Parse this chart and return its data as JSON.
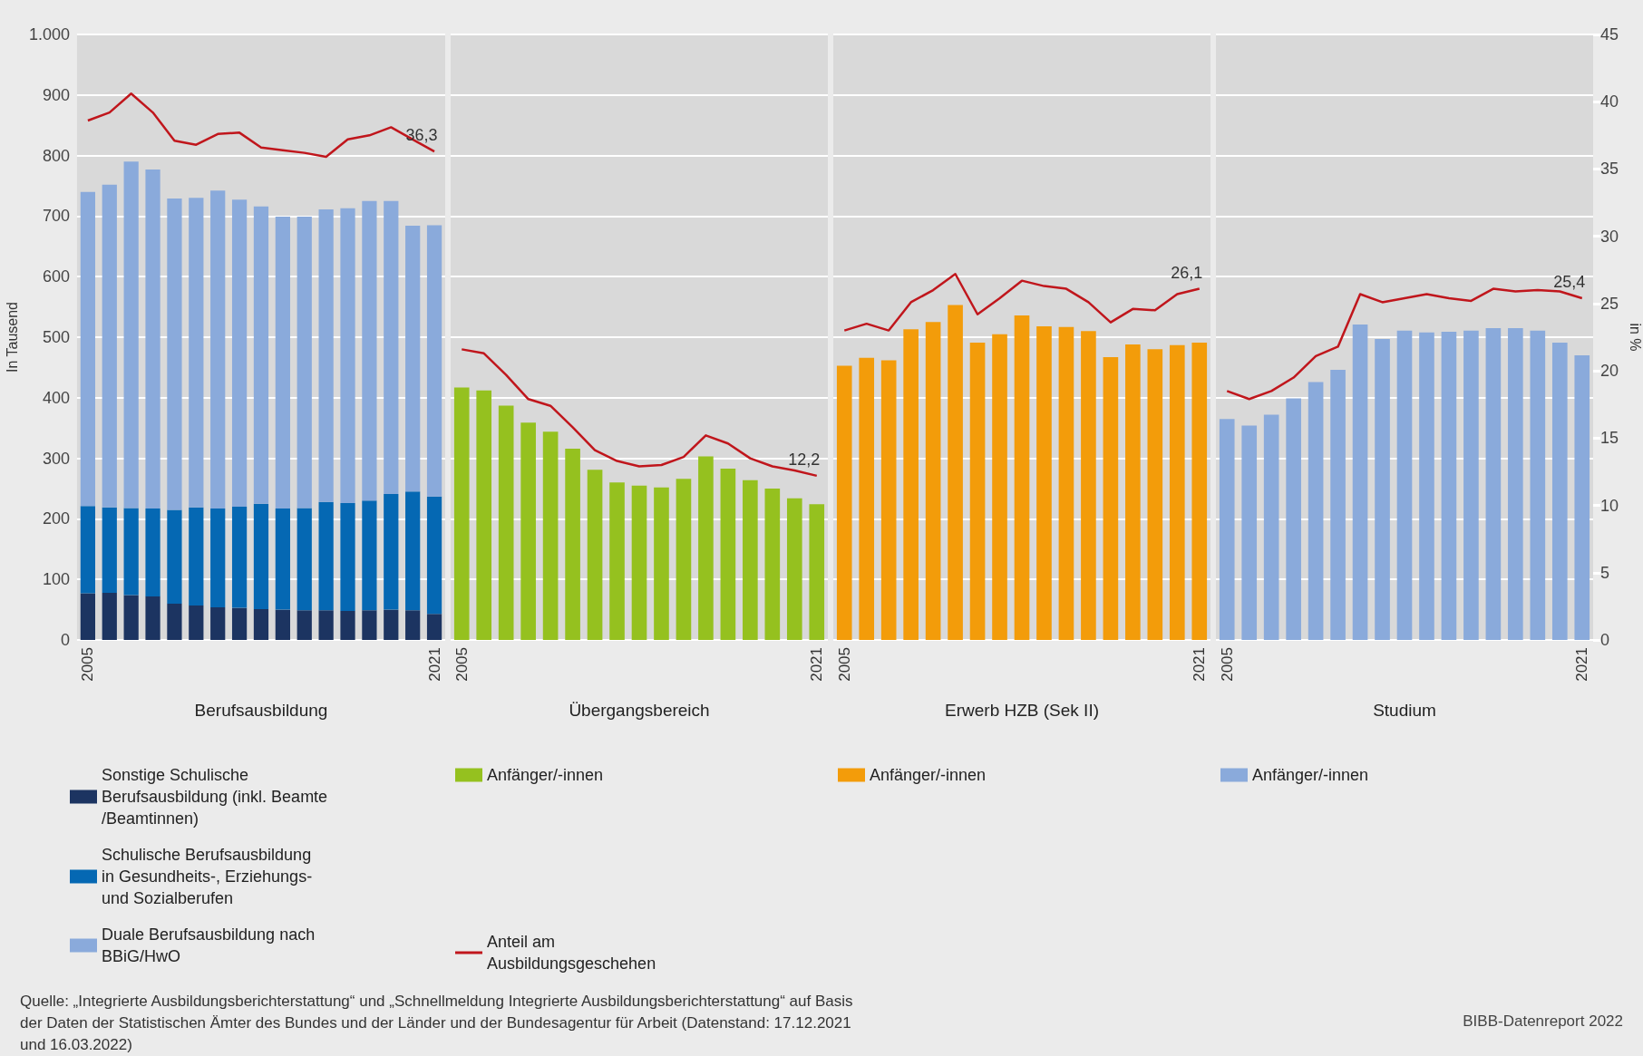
{
  "chart_data": [
    {
      "type": "bar",
      "stacked": true,
      "xlabel": "Berufsausbildung",
      "ylabel": "In Tausend",
      "categories": [
        "2005",
        null,
        null,
        null,
        null,
        null,
        null,
        null,
        null,
        null,
        null,
        null,
        null,
        null,
        null,
        null,
        "2021"
      ],
      "ylim": [
        0,
        1000
      ],
      "yticks": [
        0,
        100,
        200,
        300,
        400,
        500,
        600,
        700,
        800,
        900,
        {
          "value": 1000,
          "label": "1.000"
        }
      ],
      "y2lim": [
        0,
        45
      ],
      "grid": "y",
      "legend": "bottom",
      "series": [
        {
          "name": "Sonstige Schulische Berufsausbildung (inkl. Beamte/Beamtinnen)",
          "color": "#1c3461",
          "values": [
            77,
            78,
            74,
            72,
            60,
            57,
            54,
            53,
            51,
            50,
            49,
            49,
            48,
            49,
            50,
            49,
            43
          ]
        },
        {
          "name": "Schulische Berufsausbildung in Gesundheits-, Erziehungs- und Sozialberufen",
          "color": "#0568b3",
          "values": [
            144,
            141,
            144,
            145,
            155,
            162,
            163,
            167,
            174,
            167,
            169,
            179,
            178,
            181,
            191,
            196,
            194
          ]
        },
        {
          "name": "Duale Berufsausbildung nach BBiG/HwO",
          "color": "#8aaadb",
          "values": [
            519,
            533,
            572,
            560,
            514,
            511,
            525,
            507,
            491,
            482,
            481,
            483,
            487,
            495,
            484,
            439,
            448
          ]
        },
        {
          "type": "line",
          "axis": "y2",
          "color": "#c0161c",
          "values": [
            38.6,
            39.2,
            40.6,
            39.2,
            37.1,
            36.8,
            37.6,
            37.7,
            36.6,
            36.4,
            36.2,
            35.9,
            37.2,
            37.5,
            38.1,
            37.2,
            36.3
          ],
          "value_labels": [
            null,
            null,
            null,
            null,
            null,
            null,
            null,
            null,
            null,
            null,
            null,
            null,
            null,
            null,
            null,
            null,
            "36,3"
          ]
        }
      ],
      "annotations": [
        "Quelle: „Integrierte Ausbildungsberichterstattung“ und „Schnellmeldung Integrierte Ausbildungsberichterstattung“ auf Basis der Daten der Statistischen Ämter des Bundes und der Länder und der Bundesagentur für Arbeit (Datenstand: 17.12.2021 und 16.03.2022)",
        "BIBB-Datenreport 2022"
      ]
    },
    {
      "type": "bar",
      "xlabel": "Übergangsbereich",
      "categories": [
        "2005",
        null,
        null,
        null,
        null,
        null,
        null,
        null,
        null,
        null,
        null,
        null,
        null,
        null,
        null,
        null,
        "2021"
      ],
      "ylim": [
        0,
        1000
      ],
      "y2lim": [
        0,
        45
      ],
      "grid": "y",
      "legend": "bottom",
      "tick_labels": "x",
      "series": [
        {
          "name": "Anfänger/-innen",
          "color": "#95c11f",
          "values": [
            417,
            412,
            387,
            359,
            344,
            316,
            281,
            260,
            255,
            252,
            266,
            303,
            283,
            264,
            250,
            234,
            224
          ]
        },
        {
          "type": "line",
          "axis": "y2",
          "name": "Anteil am Ausbildungsgeschehen",
          "color": "#c0161c",
          "values": [
            21.6,
            21.3,
            19.7,
            17.9,
            17.4,
            15.8,
            14.1,
            13.3,
            12.9,
            13.0,
            13.6,
            15.2,
            14.6,
            13.5,
            12.9,
            12.6,
            12.2
          ],
          "value_labels": [
            null,
            null,
            null,
            null,
            null,
            null,
            null,
            null,
            null,
            null,
            null,
            null,
            null,
            null,
            null,
            null,
            "12,2"
          ]
        }
      ]
    },
    {
      "type": "bar",
      "xlabel": "Erwerb HZB (Sek II)",
      "categories": [
        "2005",
        null,
        null,
        null,
        null,
        null,
        null,
        null,
        null,
        null,
        null,
        null,
        null,
        null,
        null,
        null,
        "2021"
      ],
      "ylim": [
        0,
        1000
      ],
      "y2lim": [
        0,
        45
      ],
      "grid": "y",
      "legend": "bottom",
      "tick_labels": "x",
      "series": [
        {
          "name": "Anfänger/-innen",
          "color": "#f39c0a",
          "values": [
            453,
            466,
            462,
            513,
            525,
            553,
            491,
            505,
            536,
            518,
            517,
            510,
            467,
            488,
            480,
            487,
            491
          ]
        },
        {
          "type": "line",
          "axis": "y2",
          "color": "#c0161c",
          "values": [
            23.0,
            23.5,
            23.0,
            25.1,
            26.0,
            27.2,
            24.2,
            25.4,
            26.7,
            26.3,
            26.1,
            25.1,
            23.6,
            24.6,
            24.5,
            25.7,
            26.1
          ],
          "value_labels": [
            null,
            null,
            null,
            null,
            null,
            null,
            null,
            null,
            null,
            null,
            null,
            null,
            null,
            null,
            null,
            null,
            "26,1"
          ]
        }
      ]
    },
    {
      "type": "bar",
      "xlabel": "Studium",
      "y2label": "in %",
      "categories": [
        "2005",
        null,
        null,
        null,
        null,
        null,
        null,
        null,
        null,
        null,
        null,
        null,
        null,
        null,
        null,
        null,
        "2021"
      ],
      "ylim": [
        0,
        1000
      ],
      "y2lim": [
        0,
        45
      ],
      "y2ticks": [
        0,
        5,
        10,
        15,
        20,
        25,
        30,
        35,
        40,
        45
      ],
      "grid": "y",
      "legend": "bottom",
      "series": [
        {
          "name": "Anfänger/-innen",
          "color": "#8aaadb",
          "values": [
            365,
            354,
            372,
            399,
            426,
            446,
            521,
            497,
            511,
            508,
            509,
            511,
            515,
            515,
            511,
            491,
            470
          ]
        },
        {
          "type": "line",
          "axis": "y2",
          "color": "#c0161c",
          "values": [
            18.5,
            17.9,
            18.5,
            19.5,
            21.1,
            21.8,
            25.7,
            25.1,
            25.4,
            25.7,
            25.4,
            25.2,
            26.1,
            25.9,
            26.0,
            25.9,
            25.4
          ],
          "value_labels": [
            null,
            null,
            null,
            null,
            null,
            null,
            null,
            null,
            null,
            null,
            null,
            null,
            null,
            null,
            null,
            null,
            "25,4"
          ]
        }
      ]
    }
  ]
}
